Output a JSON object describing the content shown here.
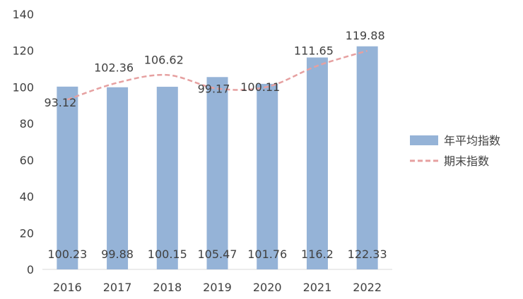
{
  "chart_data": {
    "type": "bar",
    "categories": [
      "2016",
      "2017",
      "2018",
      "2019",
      "2020",
      "2021",
      "2022"
    ],
    "series": [
      {
        "name": "年平均指数",
        "type": "bar",
        "color": "#95b3d7",
        "values": [
          100.23,
          99.88,
          100.15,
          105.47,
          101.76,
          116.2,
          122.33
        ],
        "labels": [
          "100.23",
          "99.88",
          "100.15",
          "105.47",
          "101.76",
          "116.2",
          "122.33"
        ]
      },
      {
        "name": "期末指数",
        "type": "line",
        "style": "dashed",
        "color": "#e6a0a0",
        "values": [
          93.12,
          102.36,
          106.62,
          99.17,
          100.11,
          111.65,
          119.88
        ],
        "labels": [
          "93.12",
          "102.36",
          "106.62",
          "99.17",
          "100.11",
          "111.65",
          "119.88"
        ]
      }
    ],
    "ylim": [
      0,
      140
    ],
    "yticks": [
      "0",
      "20",
      "40",
      "60",
      "80",
      "100",
      "120",
      "140"
    ],
    "grid": false,
    "legend": "right"
  }
}
